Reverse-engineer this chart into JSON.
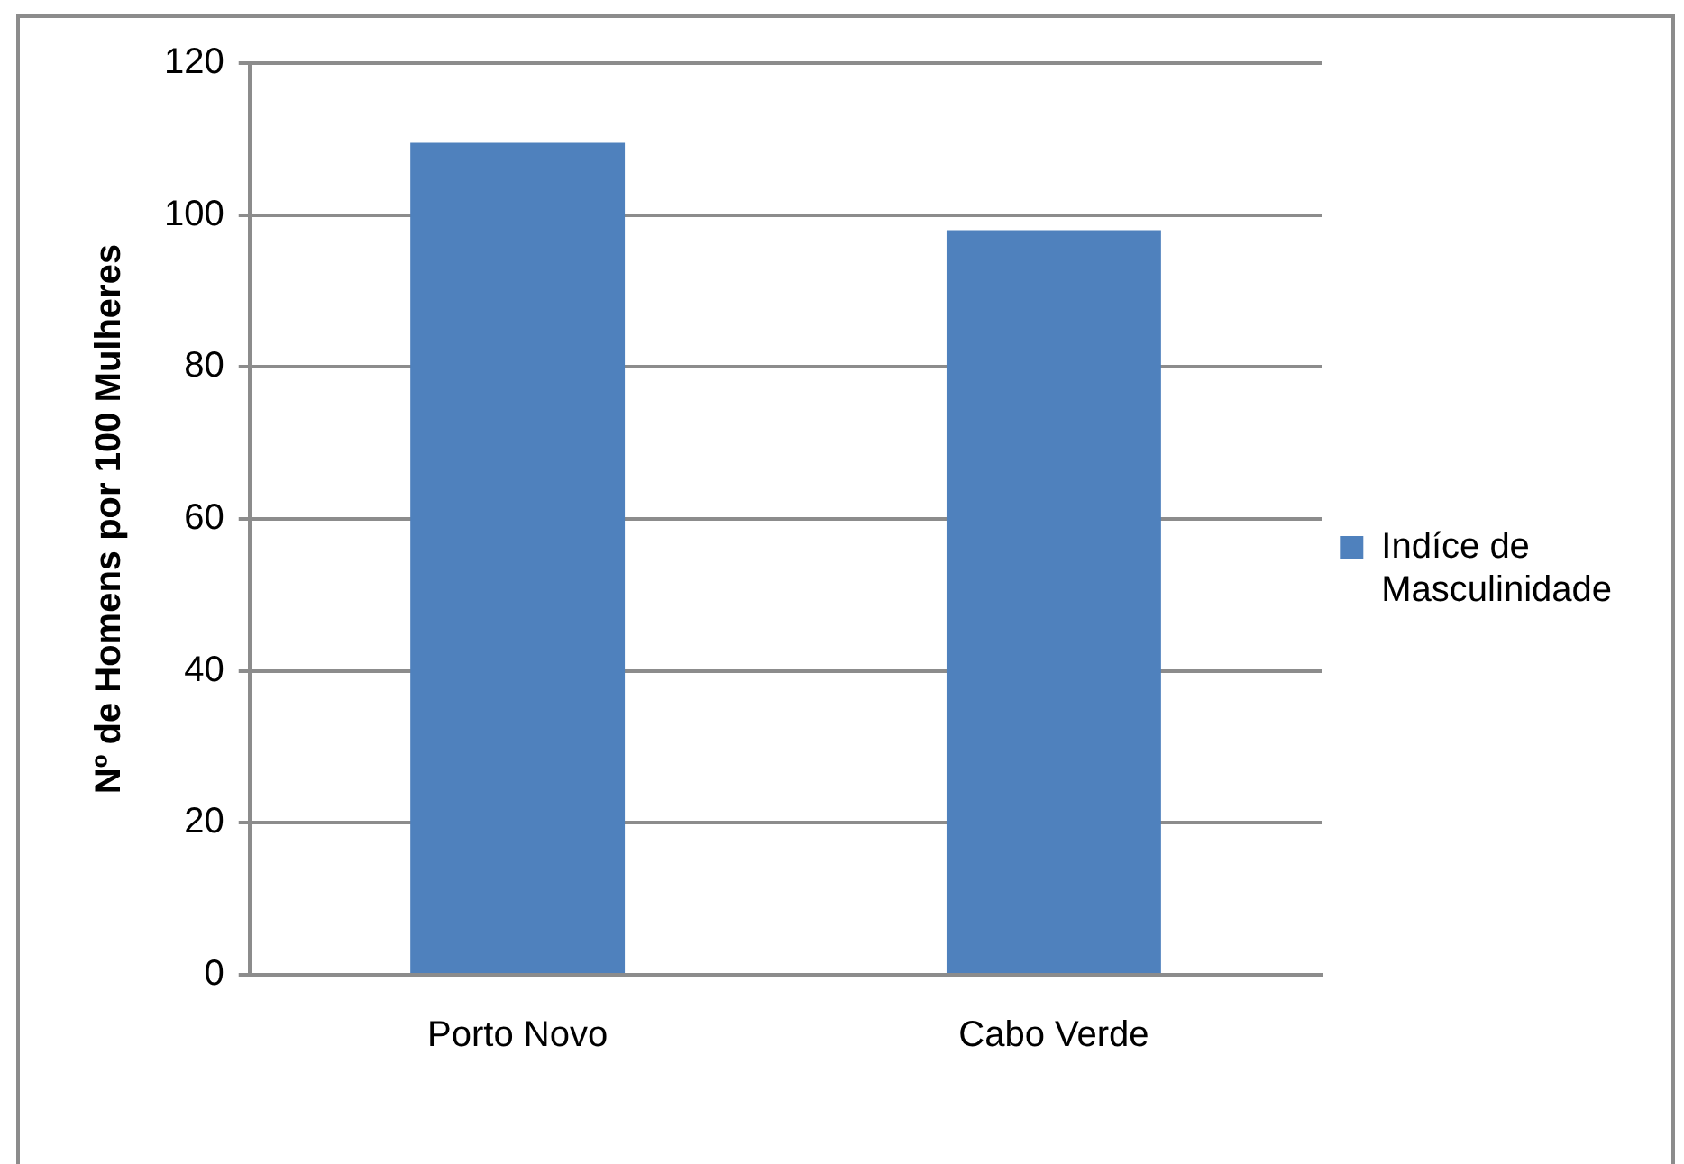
{
  "chart_data": {
    "type": "bar",
    "ylabel": "Nº de Homens por 100 Mulheres",
    "categories": [
      "Porto Novo",
      "Cabo Verde"
    ],
    "series": [
      {
        "name": "Indíce de Masculinidade",
        "color": "#4f81bd",
        "values": [
          109.5,
          98
        ]
      }
    ],
    "ylim": [
      0,
      120
    ],
    "yticks": [
      0,
      20,
      40,
      60,
      80,
      100,
      120
    ],
    "grid": "y",
    "legend": "right"
  }
}
